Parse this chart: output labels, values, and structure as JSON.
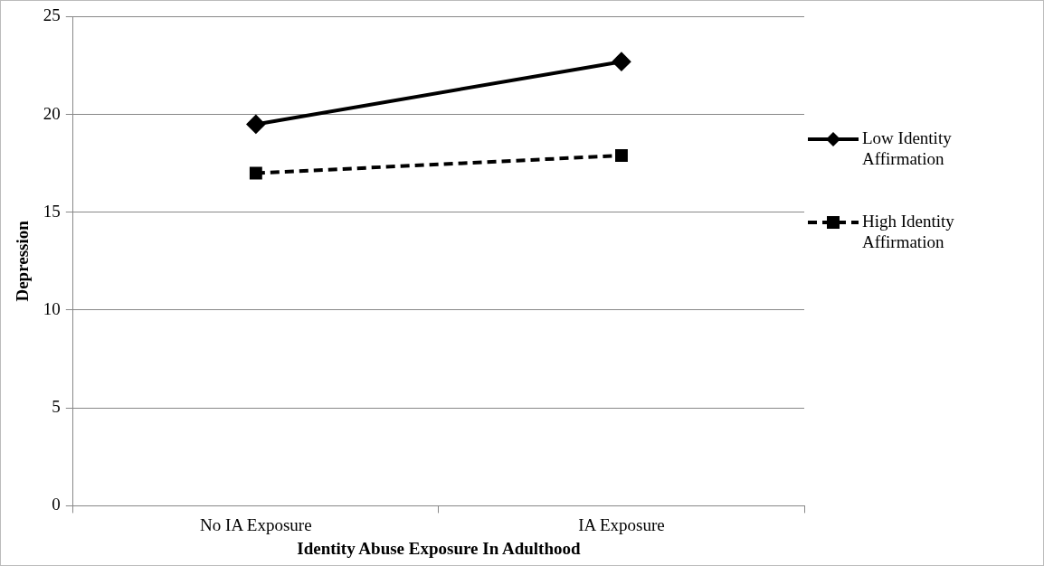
{
  "chart_data": {
    "type": "line",
    "xlabel": "Identity Abuse Exposure In Adulthood",
    "ylabel": "Depression",
    "categories": [
      "No IA Exposure",
      "IA Exposure"
    ],
    "series": [
      {
        "name": "Low Identity Affirmation",
        "color": "#000000",
        "values": [
          19.5,
          22.7
        ],
        "marker": "diamond",
        "line_style": "solid"
      },
      {
        "name": "High Identity Affirmation",
        "color": "#000000",
        "values": [
          17.0,
          17.9
        ],
        "marker": "square",
        "line_style": "dashed"
      }
    ],
    "ylim": [
      0,
      25
    ],
    "yticks": [
      0,
      5,
      10,
      15,
      20,
      25
    ],
    "grid": "y",
    "legend": "right"
  }
}
